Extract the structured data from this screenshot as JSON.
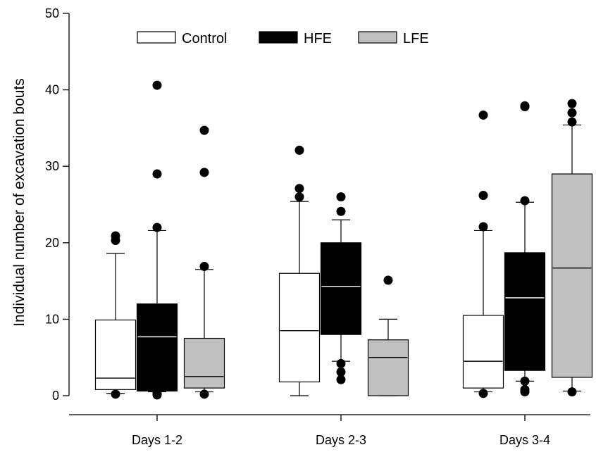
{
  "chart_data": {
    "type": "boxplot",
    "ylabel": "Individual number of excavation bouts",
    "xlabel": "",
    "ylim": [
      0,
      50
    ],
    "yticks": [
      0,
      10,
      20,
      30,
      40,
      50
    ],
    "grid": false,
    "legend_position": "top",
    "categories": [
      "Days 1-2",
      "Days 2-3",
      "Days 3-4"
    ],
    "series": [
      {
        "name": "Control",
        "color": "#ffffff",
        "median_color": "#000000",
        "boxes": [
          {
            "whisker_low": 0.3,
            "q1": 0.8,
            "median": 2.3,
            "q3": 9.9,
            "whisker_high": 18.6,
            "outliers": [
              20.3,
              20.9,
              0.2
            ]
          },
          {
            "whisker_low": 0,
            "q1": 1.8,
            "median": 8.5,
            "q3": 16,
            "whisker_high": 25.4,
            "outliers": [
              26,
              27.1,
              32.1
            ]
          },
          {
            "whisker_low": 0.5,
            "q1": 1,
            "median": 4.5,
            "q3": 10.5,
            "whisker_high": 21.6,
            "outliers": [
              22.1,
              26.2,
              36.7,
              0.3
            ]
          }
        ]
      },
      {
        "name": "HFE",
        "color": "#000000",
        "median_color": "#ffffff",
        "boxes": [
          {
            "whisker_low": 0.5,
            "q1": 0.6,
            "median": 7.7,
            "q3": 12,
            "whisker_high": 21.6,
            "outliers": [
              22,
              29,
              40.6,
              0.1,
              0.3
            ]
          },
          {
            "whisker_low": 4.5,
            "q1": 8,
            "median": 14.3,
            "q3": 20,
            "whisker_high": 23,
            "outliers": [
              24.1,
              26,
              4.2,
              3.1,
              2.1
            ]
          },
          {
            "whisker_low": 1.9,
            "q1": 3.3,
            "median": 12.8,
            "q3": 18.7,
            "whisker_high": 25.3,
            "outliers": [
              25.5,
              37.8,
              37.9,
              1.9,
              0.8,
              0.5
            ]
          }
        ]
      },
      {
        "name": "LFE",
        "color": "#c0c0c0",
        "median_color": "#000000",
        "boxes": [
          {
            "whisker_low": 0.5,
            "q1": 1,
            "median": 2.5,
            "q3": 7.5,
            "whisker_high": 16.5,
            "outliers": [
              16.9,
              29.2,
              34.7,
              0.2
            ]
          },
          {
            "whisker_low": 0,
            "q1": 0,
            "median": 5,
            "q3": 7.3,
            "whisker_high": 10,
            "outliers": [
              15.1
            ]
          },
          {
            "whisker_low": 0.6,
            "q1": 2.4,
            "median": 16.7,
            "q3": 29,
            "whisker_high": 35.4,
            "outliers": [
              35.8,
              37,
              38.2,
              0.5
            ]
          }
        ]
      }
    ]
  }
}
